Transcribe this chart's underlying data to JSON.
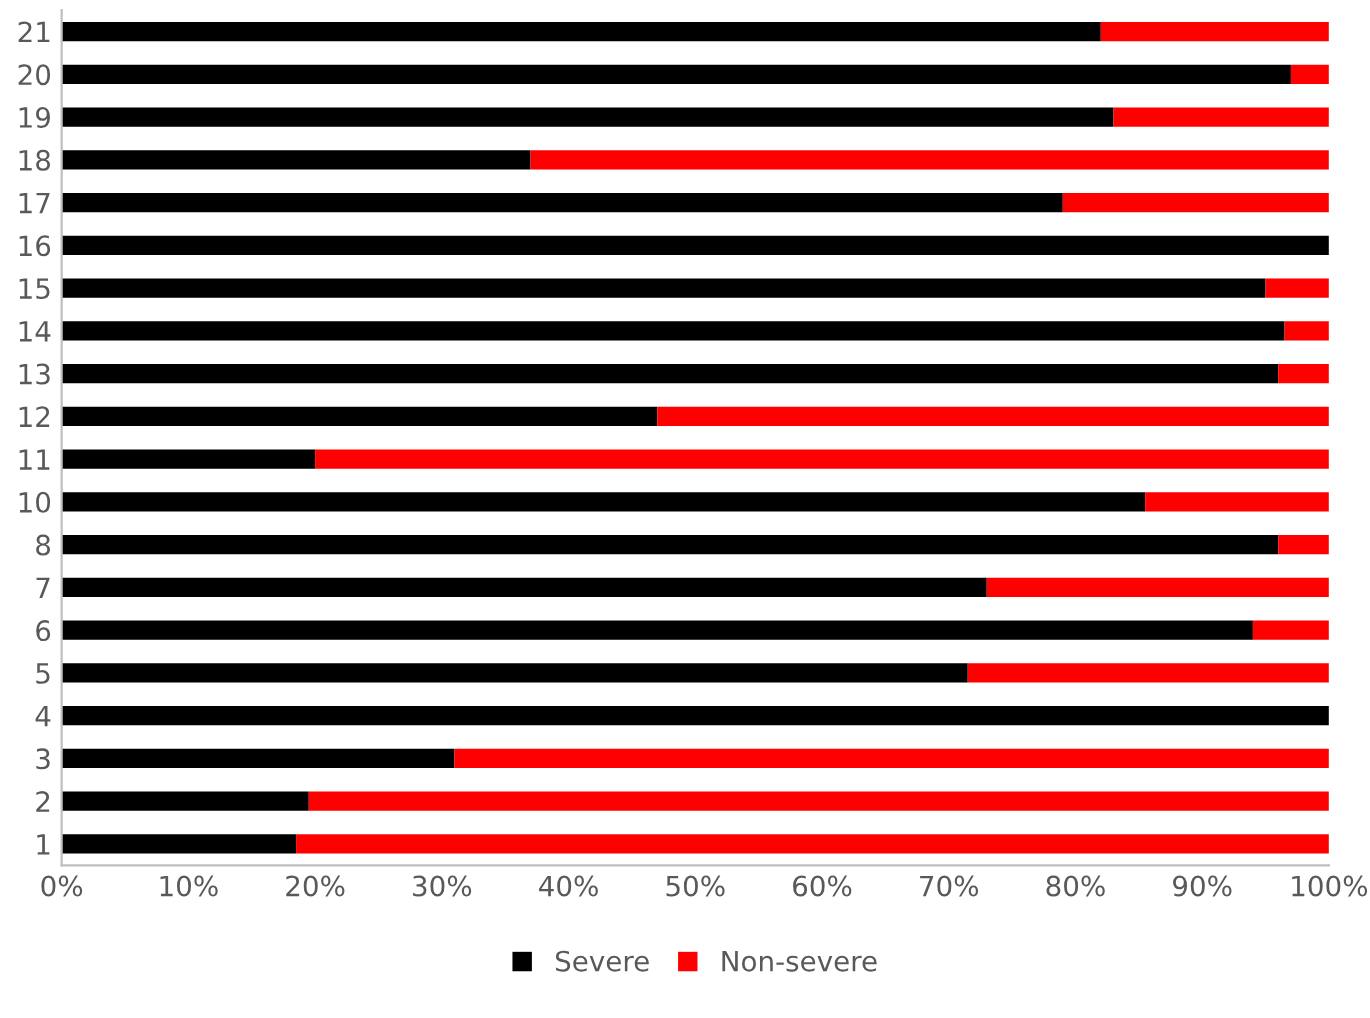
{
  "chart_data": {
    "type": "bar",
    "orientation": "horizontal",
    "stacked": true,
    "categories": [
      "21",
      "20",
      "19",
      "18",
      "17",
      "16",
      "15",
      "14",
      "13",
      "12",
      "11",
      "10",
      "8",
      "7",
      "6",
      "5",
      "4",
      "3",
      "2",
      "1"
    ],
    "series": [
      {
        "name": "Severe",
        "color": "#000000",
        "values": [
          82,
          97,
          83,
          37,
          79,
          100,
          95,
          96.5,
          96,
          47,
          20,
          85.5,
          96,
          73,
          94,
          71.5,
          100,
          31,
          19.5,
          18.5
        ]
      },
      {
        "name": "Non-severe",
        "color": "#ff0000",
        "values": [
          18,
          3,
          17,
          63,
          21,
          0,
          5,
          3.5,
          4,
          53,
          80,
          14.5,
          4,
          27,
          6,
          28.5,
          0,
          69,
          80.5,
          81.5
        ]
      }
    ],
    "xlim": [
      0,
      100
    ],
    "xticks": [
      {
        "value": 0,
        "label": "0%"
      },
      {
        "value": 10,
        "label": "10%"
      },
      {
        "value": 20,
        "label": "20%"
      },
      {
        "value": 30,
        "label": "30%"
      },
      {
        "value": 40,
        "label": "40%"
      },
      {
        "value": 50,
        "label": "50%"
      },
      {
        "value": 60,
        "label": "60%"
      },
      {
        "value": 70,
        "label": "70%"
      },
      {
        "value": 80,
        "label": "80%"
      },
      {
        "value": 90,
        "label": "90%"
      },
      {
        "value": 100,
        "label": "100%"
      }
    ],
    "legend": "bottom",
    "grid": false
  }
}
